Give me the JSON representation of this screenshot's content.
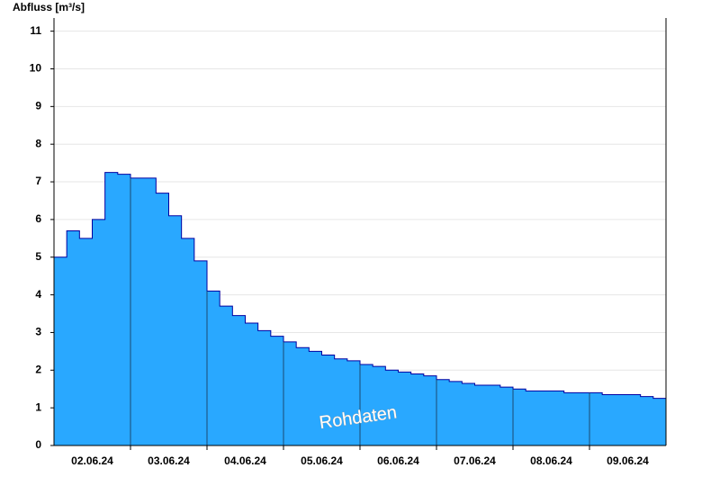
{
  "chart_data": {
    "type": "area",
    "y_label": "Abfluss [m³/s]",
    "annotation": "Rohdaten",
    "color": "#29a8ff",
    "line_color": "#0000a0",
    "grid": true,
    "categories": [
      null,
      null,
      null,
      "02.06.24",
      null,
      null,
      null,
      null,
      null,
      "03.06.24",
      null,
      null,
      null,
      null,
      null,
      "04.06.24",
      null,
      null,
      null,
      null,
      null,
      "05.06.24",
      null,
      null,
      null,
      null,
      null,
      "06.06.24",
      null,
      null,
      null,
      null,
      null,
      "07.06.24",
      null,
      null,
      null,
      null,
      null,
      "08.06.24",
      null,
      null,
      null,
      null,
      null,
      "09.06.24",
      null,
      null
    ],
    "values": [
      5.0,
      5.7,
      5.5,
      6.0,
      7.25,
      7.2,
      7.1,
      7.1,
      6.7,
      6.1,
      5.5,
      4.9,
      4.1,
      3.7,
      3.45,
      3.25,
      3.05,
      2.9,
      2.75,
      2.6,
      2.5,
      2.4,
      2.3,
      2.25,
      2.15,
      2.1,
      2.0,
      1.95,
      1.9,
      1.85,
      1.75,
      1.7,
      1.65,
      1.6,
      1.6,
      1.55,
      1.5,
      1.45,
      1.45,
      1.45,
      1.4,
      1.4,
      1.4,
      1.35,
      1.35,
      1.35,
      1.3,
      1.25
    ],
    "ylim": [
      0,
      11.35
    ],
    "yticks": [
      0,
      1,
      2,
      3,
      4,
      5,
      6,
      7,
      8,
      9,
      10,
      11
    ]
  }
}
